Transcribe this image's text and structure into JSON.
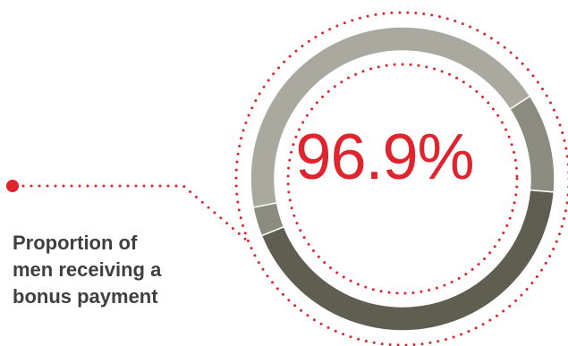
{
  "chart_data": {
    "type": "pie",
    "style": "donut",
    "center_label": "96.9%",
    "value_percent": 96.9,
    "segments": [
      {
        "value": 96.9,
        "color": "#5f5e51"
      },
      {
        "value": 3.1,
        "color": "#9e9e95"
      }
    ],
    "caption_lines": [
      "Proportion of",
      "men receiving a",
      "bonus payment"
    ]
  },
  "colors": {
    "accent": "#e0232d",
    "dark_segment": "#5f5e51",
    "mid_segment": "#8b8b80",
    "light_segment": "#a9a9a0",
    "caption_text": "#3f3f3f"
  },
  "icons": {
    "leader_dot": "red-dot-marker"
  }
}
